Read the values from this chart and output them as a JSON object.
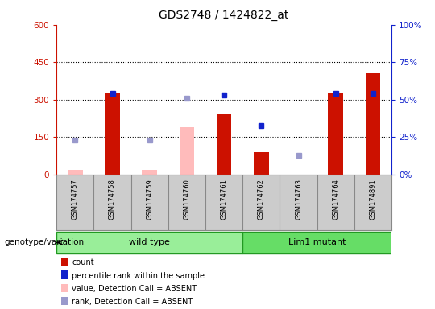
{
  "title": "GDS2748 / 1424822_at",
  "samples": [
    "GSM174757",
    "GSM174758",
    "GSM174759",
    "GSM174760",
    "GSM174761",
    "GSM174762",
    "GSM174763",
    "GSM174764",
    "GSM174891"
  ],
  "count_values": [
    null,
    325,
    null,
    null,
    240,
    90,
    null,
    330,
    405
  ],
  "count_absent": [
    18,
    null,
    18,
    190,
    null,
    null,
    null,
    null,
    null
  ],
  "rank_values_pct": [
    null,
    54,
    null,
    null,
    53,
    33,
    null,
    54,
    54
  ],
  "rank_absent_pct": [
    23,
    null,
    23,
    51,
    null,
    null,
    13,
    null,
    null
  ],
  "ylim_left": [
    0,
    600
  ],
  "ylim_right": [
    0,
    100
  ],
  "yticks_left": [
    0,
    150,
    300,
    450,
    600
  ],
  "yticks_right": [
    0,
    25,
    50,
    75,
    100
  ],
  "ytick_labels_right": [
    "0%",
    "25%",
    "50%",
    "75%",
    "100%"
  ],
  "bar_color_red": "#cc1100",
  "bar_color_pink": "#ffbbbb",
  "dot_color_blue": "#1122cc",
  "dot_color_lightblue": "#9999cc",
  "wt_color": "#99ee99",
  "lm_color": "#66dd66",
  "group_border": "#229922",
  "left_axis_color": "#cc1100",
  "right_axis_color": "#1122cc",
  "wt_indices": [
    0,
    1,
    2,
    3,
    4
  ],
  "lm_indices": [
    5,
    6,
    7,
    8
  ],
  "legend_items": [
    {
      "color": "#cc1100",
      "label": "count",
      "marker": "square"
    },
    {
      "color": "#1122cc",
      "label": "percentile rank within the sample",
      "marker": "square"
    },
    {
      "color": "#ffbbbb",
      "label": "value, Detection Call = ABSENT",
      "marker": "square"
    },
    {
      "color": "#9999cc",
      "label": "rank, Detection Call = ABSENT",
      "marker": "square"
    }
  ]
}
